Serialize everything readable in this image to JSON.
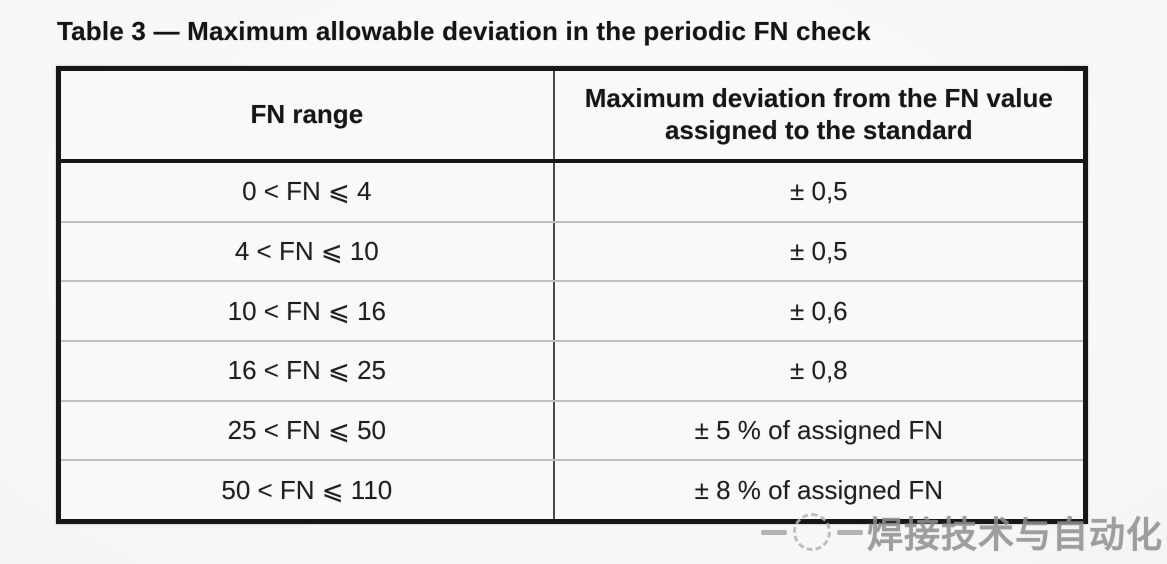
{
  "title": "Table 3 — Maximum allowable deviation in the periodic FN check",
  "table": {
    "headers": {
      "range": "FN range",
      "deviation": "Maximum deviation from the FN value assigned to the standard"
    },
    "rows": [
      {
        "range": "0 < FN ⩽ 4",
        "deviation": "± 0,5"
      },
      {
        "range": "4 < FN ⩽ 10",
        "deviation": "± 0,5"
      },
      {
        "range": "10 < FN ⩽ 16",
        "deviation": "± 0,6"
      },
      {
        "range": "16 < FN ⩽ 25",
        "deviation": "± 0,8"
      },
      {
        "range": "25 < FN ⩽ 50",
        "deviation": "± 5 % of assigned FN"
      },
      {
        "range": "50 < FN ⩽ 110",
        "deviation": "± 8 % of assigned FN"
      }
    ]
  },
  "watermark": {
    "text": "焊接技术与自动化",
    "color": "#8f8f8f"
  }
}
